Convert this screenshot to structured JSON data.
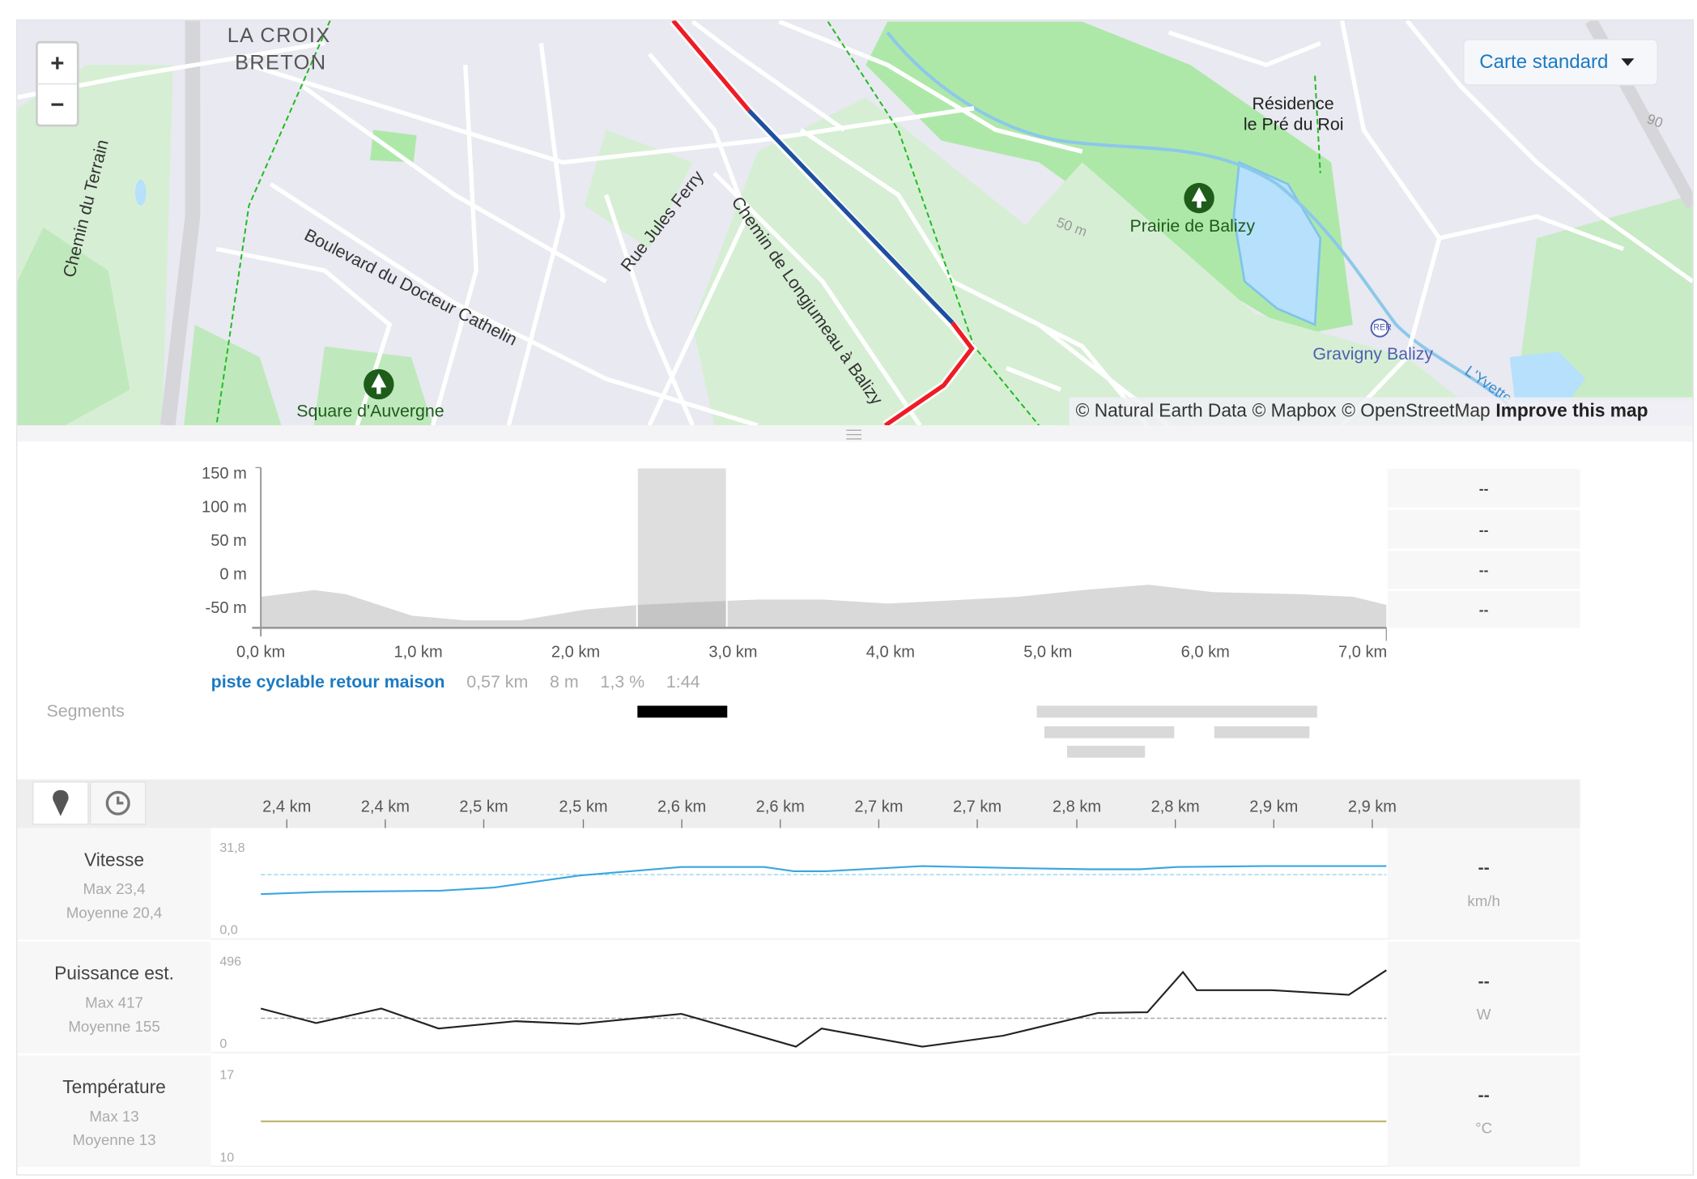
{
  "map": {
    "zoom_in": "+",
    "zoom_out": "−",
    "style_selector": "Carte standard",
    "labels": {
      "la_croix": "LA CROIX",
      "breton": "BRETON",
      "chemin_terrain": "Chemin du Terrain",
      "boulevard": "Boulevard du Docteur Cathelin",
      "rue_jules_ferry": "Rue Jules Ferry",
      "chemin_longjumeau": "Chemin de Longjumeau à Balizy",
      "residence_1": "Résidence",
      "residence_2": "le Pré du Roi",
      "prairie": "Prairie de Balizy",
      "square": "Square d'Auvergne",
      "gravigny": "Gravigny Balizy",
      "rer": "RER",
      "contour_50": "50 m",
      "contour_90": "90",
      "yvette": "L'Yvette"
    },
    "attribution": [
      "© Natural Earth Data",
      "© Mapbox",
      "© OpenStreetMap"
    ],
    "improve_link": "Improve this map",
    "colors": {
      "route_red": "#ee1c25",
      "route_blue": "#1f4fa0",
      "park": "#aee8a9",
      "water": "#b6e0fb"
    }
  },
  "elevation": {
    "y_ticks": [
      "150 m",
      "100 m",
      "50 m",
      "0 m",
      "-50 m"
    ],
    "y_tick_values": [
      150,
      100,
      50,
      0,
      -50
    ],
    "ylim": [
      -80,
      158
    ],
    "x_ticks": [
      "0,0 km",
      "1,0 km",
      "2,0 km",
      "3,0 km",
      "4,0 km",
      "5,0 km",
      "6,0 km",
      "7,0 km"
    ],
    "x_tick_values": [
      0,
      1,
      2,
      3,
      4,
      5,
      6,
      7
    ],
    "xlim": [
      0,
      7.15
    ],
    "distance_km": [
      0,
      0.34,
      0.54,
      0.96,
      1.3,
      1.65,
      2.06,
      2.4,
      2.75,
      3.16,
      3.57,
      3.98,
      4.33,
      4.81,
      5.22,
      5.64,
      6.05,
      6.6,
      6.94,
      7.15
    ],
    "elevation_m": [
      -34,
      -24,
      -30,
      -62,
      -69,
      -69,
      -53,
      -46,
      -42,
      -38,
      -38,
      -44,
      -40,
      -34,
      -24,
      -16,
      -27,
      -30,
      -34,
      -46
    ],
    "selection_km": [
      2.39,
      2.96
    ],
    "right_values": [
      "--",
      "--",
      "--",
      "--"
    ]
  },
  "segment": {
    "name": "piste cyclable retour maison",
    "distance": "0,57 km",
    "elevation_gain": "8 m",
    "grade": "1,3 %",
    "time": "1:44"
  },
  "segments": {
    "label": "Segments",
    "bars": [
      {
        "from_km": 2.39,
        "to_km": 2.96,
        "row": 0,
        "selected": true
      },
      {
        "from_km": 4.93,
        "to_km": 6.71,
        "row": 0,
        "selected": false
      },
      {
        "from_km": 4.98,
        "to_km": 5.8,
        "row": 1,
        "selected": false
      },
      {
        "from_km": 6.06,
        "to_km": 6.66,
        "row": 1,
        "selected": false
      },
      {
        "from_km": 5.12,
        "to_km": 5.62,
        "row": 2,
        "selected": false
      }
    ]
  },
  "detail": {
    "view_buttons": [
      {
        "icon": "map-pin-icon"
      },
      {
        "icon": "clock-icon"
      }
    ],
    "x_ticks": [
      "2,4 km",
      "2,4 km",
      "2,5 km",
      "2,5 km",
      "2,6 km",
      "2,6 km",
      "2,7 km",
      "2,7 km",
      "2,8 km",
      "2,8 km",
      "2,9 km",
      "2,9 km"
    ],
    "xlim": [
      2.39,
      2.96
    ],
    "metrics": [
      {
        "title": "Vitesse",
        "max": "Max 23,4",
        "avg": "Moyenne 20,4",
        "y_max_label": "31,8",
        "y_min_label": "0,0",
        "ylim": [
          0,
          31.8
        ],
        "average": 20.4,
        "value": "--",
        "unit": "km/h",
        "color": "#3aa6e0",
        "avg_color": "#a8dcf2",
        "distance_km": [
          2.39,
          2.422,
          2.481,
          2.508,
          2.551,
          2.603,
          2.645,
          2.66,
          2.676,
          2.725,
          2.773,
          2.81,
          2.835,
          2.854,
          2.897,
          2.96
        ],
        "values": [
          13.6,
          14.4,
          14.8,
          15.9,
          20.1,
          23.1,
          23.1,
          21.6,
          21.6,
          23.4,
          22.7,
          22.3,
          22.3,
          23.1,
          23.4,
          23.4
        ]
      },
      {
        "title": "Puissance est.",
        "max": "Max 417",
        "avg": "Moyenne 155",
        "y_max_label": "496",
        "y_min_label": "0",
        "ylim": [
          0,
          496
        ],
        "average": 155,
        "value": "--",
        "unit": "W",
        "color": "#222222",
        "avg_color": "#aaaaaa",
        "distance_km": [
          2.39,
          2.418,
          2.451,
          2.48,
          2.519,
          2.551,
          2.603,
          2.661,
          2.674,
          2.725,
          2.766,
          2.814,
          2.839,
          2.857,
          2.864,
          2.902,
          2.941,
          2.96
        ],
        "values": [
          208,
          129,
          208,
          99,
          139,
          124,
          179,
          0,
          99,
          0,
          60,
          184,
          188,
          407,
          308,
          308,
          283,
          417
        ]
      },
      {
        "title": "Température",
        "max": "Max 13",
        "avg": "Moyenne 13",
        "y_max_label": "17",
        "y_min_label": "10",
        "ylim": [
          10,
          17
        ],
        "average": null,
        "value": "--",
        "unit": "°C",
        "color": "#bdb46a",
        "avg_color": null,
        "distance_km": [
          2.39,
          2.96
        ],
        "values": [
          13,
          13
        ]
      }
    ]
  }
}
